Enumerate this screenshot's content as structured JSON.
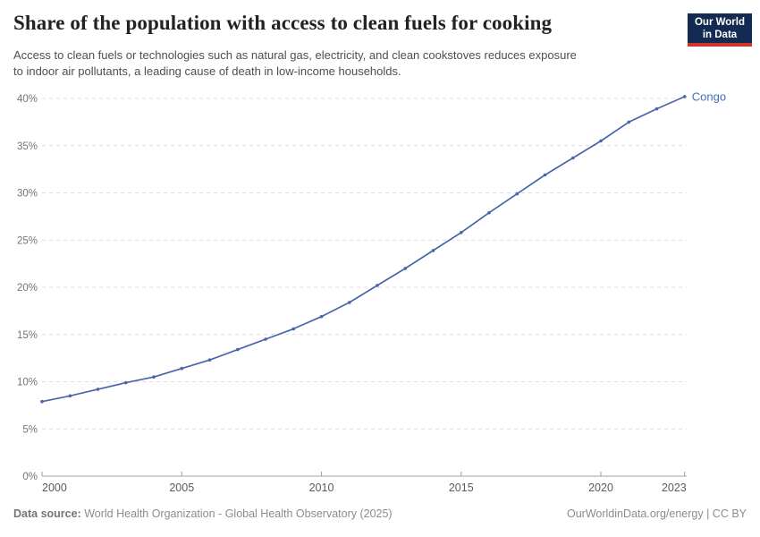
{
  "header": {
    "title": "Share of the population with access to clean fuels for cooking",
    "subtitle_lines": [
      "Access to clean fuels or technologies such as natural gas, electricity, and clean cookstoves reduces exposure",
      "to indoor air pollutants, a leading cause of death in low-income households."
    ],
    "logo": {
      "line1": "Our World",
      "line2": "in Data"
    }
  },
  "footer": {
    "data_source_label": "Data source:",
    "data_source_text": "World Health Organization - Global Health Observatory (2025)",
    "link_text": "OurWorldinData.org/energy | CC BY"
  },
  "chart_data": {
    "type": "line",
    "title": "Share of the population with access to clean fuels for cooking",
    "xlabel": "",
    "ylabel": "",
    "ylim": [
      0,
      40
    ],
    "yticks": [
      0,
      5,
      10,
      15,
      20,
      25,
      30,
      35,
      40
    ],
    "ytick_suffix": "%",
    "xlim": [
      2000,
      2023
    ],
    "xticks": [
      2000,
      2005,
      2010,
      2015,
      2020,
      2023
    ],
    "grid": "horizontal-dashed",
    "legend": "end-of-line-label",
    "series": [
      {
        "name": "Congo",
        "x": [
          2000,
          2001,
          2002,
          2003,
          2004,
          2005,
          2006,
          2007,
          2008,
          2009,
          2010,
          2011,
          2012,
          2013,
          2014,
          2015,
          2016,
          2017,
          2018,
          2019,
          2020,
          2021,
          2022,
          2023
        ],
        "values": [
          7.9,
          8.5,
          9.2,
          9.9,
          10.5,
          11.4,
          12.3,
          13.4,
          14.5,
          15.6,
          16.9,
          18.4,
          20.2,
          22.0,
          23.9,
          25.8,
          27.9,
          29.9,
          31.9,
          33.7,
          35.5,
          37.5,
          38.9,
          40.2
        ]
      }
    ]
  },
  "colors": {
    "series": "#4866a8",
    "series_label": "#4470b2",
    "grid": "#dcdcdc",
    "axis": "#a3a3a3",
    "ytick_label": "#757575",
    "xtick_label": "#5b5b5b",
    "logo_bg": "#132a52",
    "logo_red": "#d13328"
  }
}
